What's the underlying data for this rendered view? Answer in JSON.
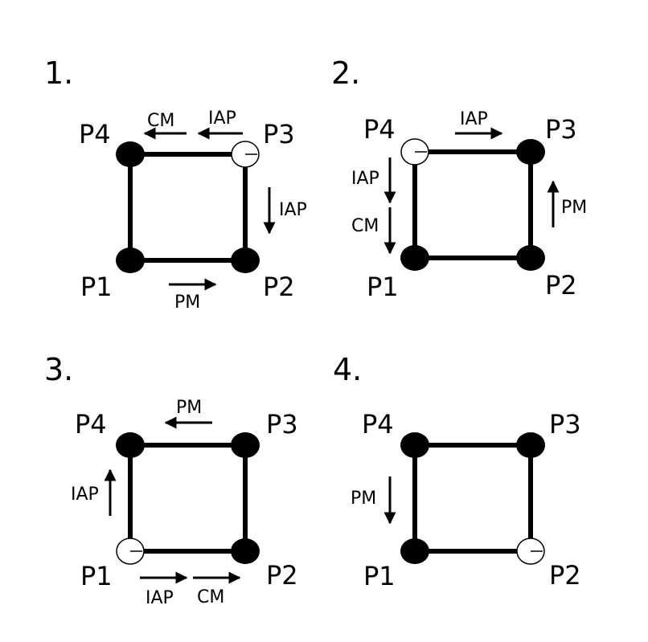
{
  "panels": [
    {
      "number": "1.",
      "corners": {
        "p4": "P4",
        "p3": "P3",
        "p1": "P1",
        "p2": "P2"
      },
      "open_corner": "P3",
      "arrows": [
        {
          "label": "CM",
          "direction": "left"
        },
        {
          "label": "IAP",
          "direction": "left"
        },
        {
          "label": "IAP",
          "direction": "down"
        },
        {
          "label": "PM",
          "direction": "right"
        }
      ]
    },
    {
      "number": "2.",
      "corners": {
        "p4": "P4",
        "p3": "P3",
        "p1": "P1",
        "p2": "P2"
      },
      "open_corner": "P4",
      "arrows": [
        {
          "label": "IAP",
          "direction": "right"
        },
        {
          "label": "IAP",
          "direction": "down"
        },
        {
          "label": "CM",
          "direction": "down"
        },
        {
          "label": "PM",
          "direction": "up"
        }
      ]
    },
    {
      "number": "3.",
      "corners": {
        "p4": "P4",
        "p3": "P3",
        "p1": "P1",
        "p2": "P2"
      },
      "open_corner": "P1",
      "arrows": [
        {
          "label": "PM",
          "direction": "left"
        },
        {
          "label": "IAP",
          "direction": "up"
        },
        {
          "label": "IAP",
          "direction": "right"
        },
        {
          "label": "CM",
          "direction": "right"
        }
      ]
    },
    {
      "number": "4.",
      "corners": {
        "p4": "P4",
        "p3": "P3",
        "p1": "P1",
        "p2": "P2"
      },
      "open_corner": "P2",
      "arrows": [
        {
          "label": "PM",
          "direction": "down"
        }
      ]
    }
  ]
}
